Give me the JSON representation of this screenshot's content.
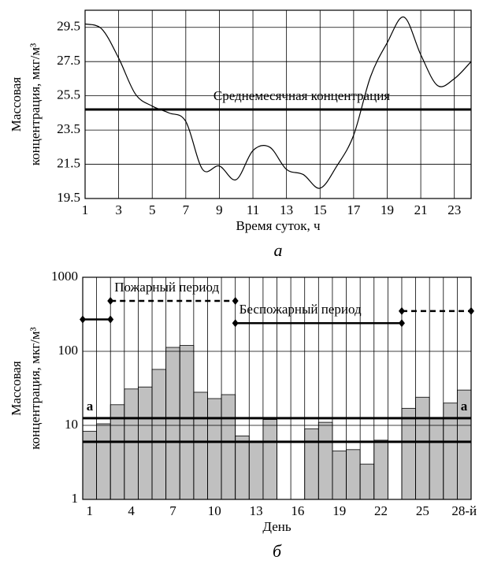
{
  "chart_data": [
    {
      "type": "line",
      "panel": "а",
      "ylabel": [
        "Массовая",
        "концентрация, мкг/м³"
      ],
      "xlabel": "Время суток, ч",
      "x": [
        1,
        2,
        3,
        4,
        5,
        6,
        7,
        8,
        9,
        10,
        11,
        12,
        13,
        14,
        15,
        16,
        17,
        18,
        19,
        20,
        21,
        22,
        23,
        24
      ],
      "series": [
        {
          "color": "#000000",
          "values": [
            29.7,
            29.4,
            27.7,
            25.6,
            24.9,
            24.5,
            24.0,
            21.2,
            21.4,
            20.6,
            22.3,
            22.5,
            21.2,
            20.9,
            20.1,
            21.4,
            23.2,
            26.6,
            28.6,
            30.1,
            27.9,
            26.1,
            26.5,
            27.5
          ]
        }
      ],
      "mean_line": {
        "label": "Среднемесячная концентрация",
        "value": 24.7
      },
      "xlim": [
        1,
        24
      ],
      "xticks": [
        1,
        3,
        5,
        7,
        9,
        11,
        13,
        15,
        17,
        19,
        21,
        23
      ],
      "ylim": [
        19.5,
        30.5
      ],
      "yticks": [
        19.5,
        21.5,
        23.5,
        25.5,
        27.5,
        29.5
      ],
      "grid": true
    },
    {
      "type": "bar",
      "panel": "б",
      "log_scale": true,
      "ylabel": [
        "Массовая",
        "концентрация, мкг/м³"
      ],
      "xlabel": "День",
      "categories": [
        "1",
        null,
        null,
        "4",
        null,
        null,
        "7",
        null,
        null,
        "10",
        null,
        null,
        "13",
        null,
        null,
        "16",
        null,
        null,
        "19",
        null,
        null,
        "22",
        null,
        null,
        "25",
        null,
        null,
        "28-й"
      ],
      "values": [
        8.3,
        10.5,
        19,
        31,
        33,
        57,
        113,
        120,
        28,
        23,
        26,
        7.2,
        6.0,
        12,
        null,
        null,
        9,
        11,
        4.5,
        4.7,
        3.0,
        6.3,
        null,
        17,
        24,
        12.5,
        20,
        30
      ],
      "color": "#c0c0c0",
      "reference_lines": [
        {
          "value": 12.5,
          "label": "а"
        },
        {
          "value": 6.0
        }
      ],
      "periods": [
        {
          "label": "Пожарный период",
          "segments": [
            {
              "start": 0.5,
              "end": 2.5,
              "level": 270,
              "style": "solid"
            },
            {
              "start": 2.5,
              "end": 11.5,
              "level": 480,
              "style": "dashed"
            }
          ]
        },
        {
          "label": "Беспожарный период",
          "segments": [
            {
              "start": 11.5,
              "end": 23.5,
              "level": 240,
              "style": "solid"
            },
            {
              "start": 23.5,
              "end": 28.5,
              "level": 350,
              "style": "dashed"
            }
          ]
        }
      ],
      "ylim": [
        1,
        1000
      ],
      "yticks": [
        1,
        10,
        100,
        1000
      ],
      "grid": true
    }
  ]
}
